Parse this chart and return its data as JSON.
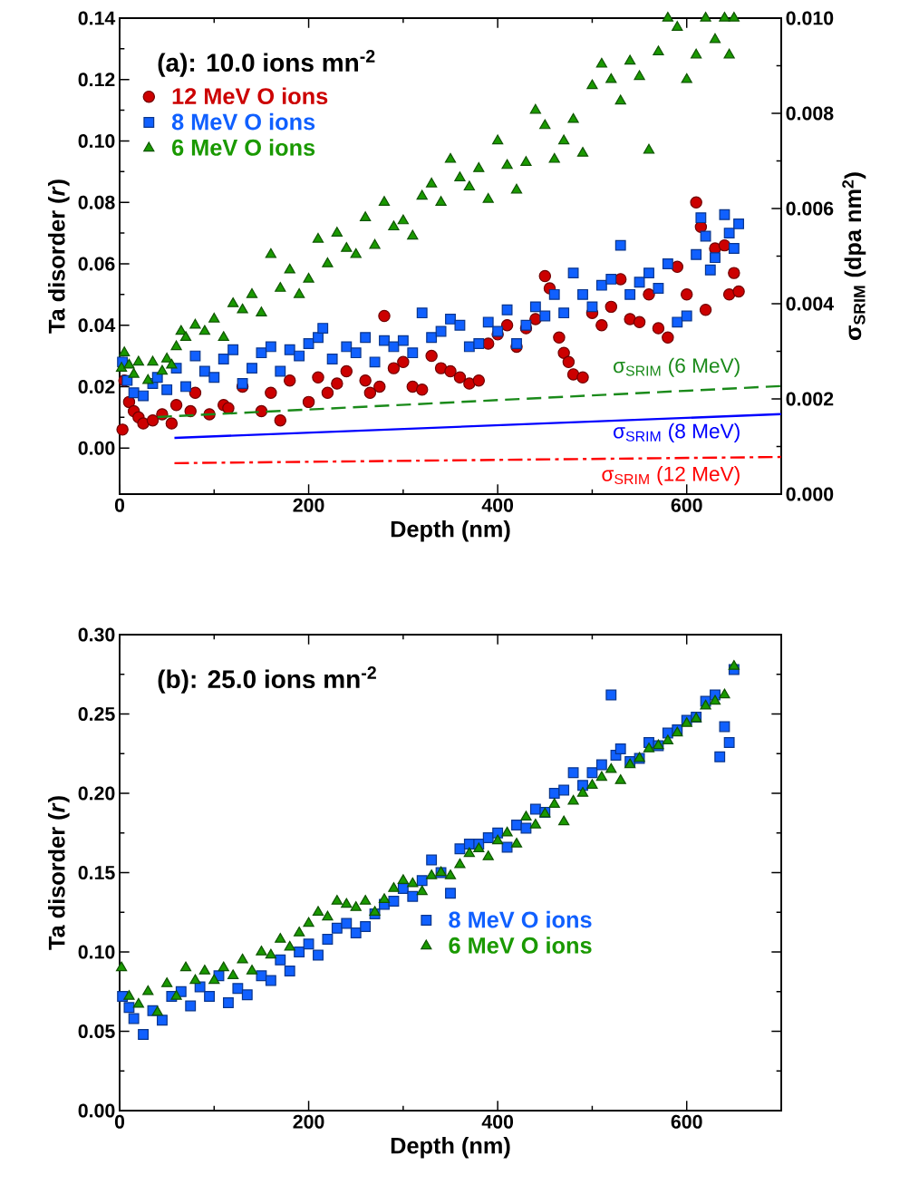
{
  "chart_data": [
    {
      "type": "scatter",
      "annotations": [
        "(a): 10.0 ions mn$^{-2}$"
      ],
      "xlabel": "Depth (nm)",
      "ylabel": "Ta disorder (*r*)",
      "y2label": "σ$_{SRIM}$ (dpa nm$^{2}$)",
      "xlim": [
        0,
        700
      ],
      "xticks": [
        0,
        200,
        400,
        600
      ],
      "ylim": [
        -0.015,
        0.14
      ],
      "yticks": [
        {
          "value": 0,
          "label": "0.00"
        },
        {
          "value": 0.02,
          "label": "0.02"
        },
        {
          "value": 0.04,
          "label": "0.04"
        },
        {
          "value": 0.06,
          "label": "0.06"
        },
        {
          "value": 0.08,
          "label": "0.08"
        },
        {
          "value": 0.1,
          "label": "0.10"
        },
        {
          "value": 0.12,
          "label": "0.12"
        },
        {
          "value": 0.14,
          "label": "0.14"
        }
      ],
      "y2lim": [
        0,
        0.01
      ],
      "y2ticks": [
        {
          "value": 0,
          "label": "0.000"
        },
        {
          "value": 0.002,
          "label": "0.002"
        },
        {
          "value": 0.004,
          "label": "0.004"
        },
        {
          "value": 0.006,
          "label": "0.006"
        },
        {
          "value": 0.008,
          "label": "0.008"
        },
        {
          "value": 0.01,
          "label": "0.010"
        }
      ],
      "legend": "top left",
      "series": [
        {
          "name": "12 MeV O ions",
          "color": "#cc0000",
          "marker": "circle",
          "x": [
            3,
            5,
            10,
            15,
            20,
            25,
            35,
            45,
            55,
            60,
            75,
            80,
            95,
            110,
            115,
            130,
            150,
            160,
            170,
            180,
            200,
            210,
            220,
            230,
            240,
            260,
            265,
            275,
            280,
            290,
            300,
            310,
            320,
            330,
            340,
            350,
            360,
            370,
            380,
            390,
            400,
            410,
            420,
            430,
            440,
            450,
            455,
            465,
            470,
            475,
            480,
            490,
            500,
            510,
            520,
            530,
            540,
            550,
            560,
            570,
            580,
            590,
            600,
            610,
            615,
            620,
            630,
            640,
            645,
            650,
            655
          ],
          "values": [
            0.006,
            0.022,
            0.015,
            0.012,
            0.01,
            0.008,
            0.009,
            0.011,
            0.008,
            0.014,
            0.012,
            0.018,
            0.011,
            0.014,
            0.013,
            0.02,
            0.012,
            0.018,
            0.009,
            0.022,
            0.015,
            0.023,
            0.018,
            0.021,
            0.025,
            0.022,
            0.018,
            0.02,
            0.043,
            0.026,
            0.028,
            0.02,
            0.019,
            0.03,
            0.026,
            0.025,
            0.023,
            0.021,
            0.022,
            0.034,
            0.037,
            0.04,
            0.033,
            0.039,
            0.042,
            0.056,
            0.052,
            0.036,
            0.031,
            0.028,
            0.024,
            0.023,
            0.044,
            0.04,
            0.046,
            0.055,
            0.042,
            0.041,
            0.05,
            0.039,
            0.036,
            0.059,
            0.05,
            0.08,
            0.072,
            0.045,
            0.065,
            0.066,
            0.05,
            0.057,
            0.051
          ]
        },
        {
          "name": "8 MeV O ions",
          "color": "#1060ff",
          "marker": "square",
          "x": [
            3,
            8,
            15,
            25,
            35,
            40,
            50,
            60,
            70,
            80,
            90,
            100,
            110,
            120,
            130,
            140,
            150,
            160,
            170,
            180,
            190,
            200,
            210,
            215,
            225,
            240,
            250,
            260,
            270,
            280,
            290,
            300,
            310,
            320,
            330,
            340,
            350,
            360,
            370,
            380,
            390,
            400,
            410,
            420,
            430,
            440,
            450,
            460,
            470,
            480,
            490,
            500,
            510,
            520,
            530,
            540,
            550,
            560,
            570,
            580,
            590,
            600,
            610,
            615,
            620,
            625,
            630,
            640,
            645,
            650,
            655
          ],
          "values": [
            0.028,
            0.022,
            0.018,
            0.017,
            0.021,
            0.023,
            0.019,
            0.026,
            0.02,
            0.03,
            0.025,
            0.023,
            0.029,
            0.032,
            0.021,
            0.026,
            0.031,
            0.033,
            0.025,
            0.032,
            0.03,
            0.034,
            0.036,
            0.039,
            0.029,
            0.033,
            0.031,
            0.036,
            0.028,
            0.035,
            0.033,
            0.035,
            0.031,
            0.044,
            0.036,
            0.038,
            0.042,
            0.04,
            0.033,
            0.034,
            0.041,
            0.038,
            0.045,
            0.034,
            0.04,
            0.046,
            0.043,
            0.05,
            0.044,
            0.057,
            0.05,
            0.046,
            0.053,
            0.055,
            0.066,
            0.05,
            0.054,
            0.057,
            0.052,
            0.06,
            0.041,
            0.043,
            0.063,
            0.075,
            0.069,
            0.058,
            0.062,
            0.076,
            0.07,
            0.065,
            0.073
          ]
        },
        {
          "name": "6 MeV O ions",
          "color": "#1a9900",
          "marker": "triangle",
          "x": [
            2,
            5,
            10,
            15,
            20,
            30,
            35,
            45,
            50,
            55,
            60,
            65,
            70,
            80,
            90,
            100,
            110,
            120,
            130,
            140,
            150,
            160,
            170,
            180,
            190,
            200,
            210,
            220,
            230,
            240,
            250,
            260,
            270,
            280,
            290,
            300,
            310,
            320,
            330,
            340,
            350,
            360,
            370,
            380,
            390,
            400,
            410,
            420,
            430,
            440,
            450,
            460,
            470,
            480,
            490,
            500,
            510,
            520,
            530,
            540,
            550,
            560,
            570,
            580,
            590,
            600,
            610,
            620,
            630,
            640,
            645,
            650
          ],
          "values": [
            0.026,
            0.031,
            0.027,
            0.024,
            0.028,
            0.022,
            0.028,
            0.025,
            0.029,
            0.027,
            0.033,
            0.038,
            0.036,
            0.04,
            0.038,
            0.042,
            0.036,
            0.047,
            0.045,
            0.05,
            0.044,
            0.063,
            0.052,
            0.058,
            0.05,
            0.055,
            0.068,
            0.06,
            0.07,
            0.065,
            0.063,
            0.075,
            0.066,
            0.08,
            0.072,
            0.074,
            0.069,
            0.082,
            0.086,
            0.08,
            0.094,
            0.088,
            0.085,
            0.091,
            0.081,
            0.1,
            0.092,
            0.084,
            0.093,
            0.11,
            0.105,
            0.094,
            0.1,
            0.107,
            0.096,
            0.118,
            0.125,
            0.12,
            0.113,
            0.126,
            0.121,
            0.097,
            0.129,
            0.14,
            0.137,
            0.12,
            0.128,
            0.14,
            0.133,
            0.14,
            0.128,
            0.14
          ]
        },
        {
          "name": "σ$_{SRIM}$ (6 MeV)",
          "color": "#1a8a1a",
          "type": "line",
          "axis": "y2",
          "line_style": "dashed",
          "x": [
            40,
            700
          ],
          "values": [
            0.00162,
            0.00227
          ]
        },
        {
          "name": "σ$_{SRIM}$ (8 MeV)",
          "color": "#0000ff",
          "type": "line",
          "axis": "y2",
          "line_style": "solid",
          "x": [
            58,
            700
          ],
          "values": [
            0.00118,
            0.00168
          ]
        },
        {
          "name": "σ$_{SRIM}$ (12 MeV)",
          "color": "#ff0000",
          "type": "line",
          "axis": "y2",
          "line_style": "dashdot",
          "x": [
            58,
            700
          ],
          "values": [
            0.00065,
            0.00078
          ]
        }
      ]
    },
    {
      "type": "scatter",
      "annotations": [
        "(b): 25.0 ions mn$^{-2}$"
      ],
      "xlabel": "Depth (nm)",
      "ylabel": "Ta disorder (*r*)",
      "xlim": [
        0,
        700
      ],
      "xticks": [
        0,
        200,
        400,
        600
      ],
      "ylim": [
        0,
        0.3
      ],
      "yticks": [
        {
          "value": 0,
          "label": "0.00"
        },
        {
          "value": 0.05,
          "label": "0.05"
        },
        {
          "value": 0.1,
          "label": "0.10"
        },
        {
          "value": 0.15,
          "label": "0.15"
        },
        {
          "value": 0.2,
          "label": "0.20"
        },
        {
          "value": 0.25,
          "label": "0.25"
        },
        {
          "value": 0.3,
          "label": "0.30"
        }
      ],
      "legend": "right",
      "series": [
        {
          "name": "8 MeV O ions",
          "color": "#1060ff",
          "marker": "square",
          "x": [
            3,
            10,
            15,
            25,
            35,
            45,
            55,
            65,
            75,
            85,
            95,
            105,
            115,
            125,
            135,
            150,
            160,
            170,
            180,
            190,
            200,
            210,
            220,
            230,
            240,
            250,
            260,
            270,
            280,
            290,
            300,
            310,
            320,
            330,
            340,
            350,
            360,
            370,
            380,
            390,
            400,
            410,
            420,
            430,
            440,
            450,
            460,
            470,
            480,
            490,
            500,
            510,
            520,
            525,
            530,
            540,
            550,
            560,
            570,
            580,
            590,
            600,
            610,
            620,
            630,
            635,
            640,
            645,
            650
          ],
          "values": [
            0.072,
            0.065,
            0.058,
            0.048,
            0.063,
            0.057,
            0.072,
            0.075,
            0.066,
            0.078,
            0.072,
            0.085,
            0.068,
            0.077,
            0.073,
            0.085,
            0.082,
            0.095,
            0.088,
            0.1,
            0.105,
            0.098,
            0.108,
            0.115,
            0.118,
            0.112,
            0.116,
            0.124,
            0.13,
            0.132,
            0.14,
            0.135,
            0.145,
            0.158,
            0.15,
            0.137,
            0.165,
            0.168,
            0.168,
            0.172,
            0.175,
            0.166,
            0.18,
            0.178,
            0.19,
            0.188,
            0.2,
            0.202,
            0.213,
            0.205,
            0.213,
            0.218,
            0.262,
            0.224,
            0.228,
            0.22,
            0.222,
            0.232,
            0.23,
            0.238,
            0.24,
            0.246,
            0.248,
            0.258,
            0.262,
            0.223,
            0.242,
            0.232,
            0.278
          ]
        },
        {
          "name": "6 MeV O ions",
          "color": "#1a9900",
          "marker": "triangle",
          "x": [
            2,
            10,
            20,
            30,
            40,
            50,
            60,
            70,
            80,
            90,
            100,
            110,
            120,
            130,
            140,
            150,
            160,
            170,
            180,
            190,
            200,
            210,
            220,
            230,
            240,
            250,
            260,
            270,
            280,
            290,
            300,
            310,
            320,
            330,
            340,
            350,
            360,
            370,
            380,
            390,
            400,
            410,
            420,
            430,
            440,
            450,
            460,
            470,
            480,
            490,
            500,
            510,
            520,
            530,
            540,
            550,
            560,
            570,
            580,
            590,
            600,
            610,
            620,
            630,
            640,
            650
          ],
          "values": [
            0.09,
            0.072,
            0.067,
            0.075,
            0.062,
            0.08,
            0.072,
            0.09,
            0.082,
            0.088,
            0.082,
            0.09,
            0.085,
            0.095,
            0.088,
            0.1,
            0.098,
            0.108,
            0.103,
            0.112,
            0.118,
            0.125,
            0.122,
            0.132,
            0.13,
            0.128,
            0.132,
            0.125,
            0.133,
            0.14,
            0.145,
            0.143,
            0.138,
            0.148,
            0.15,
            0.148,
            0.155,
            0.162,
            0.165,
            0.16,
            0.17,
            0.175,
            0.168,
            0.185,
            0.18,
            0.187,
            0.193,
            0.182,
            0.195,
            0.2,
            0.205,
            0.21,
            0.215,
            0.208,
            0.218,
            0.222,
            0.228,
            0.23,
            0.233,
            0.238,
            0.244,
            0.247,
            0.255,
            0.258,
            0.262,
            0.28
          ]
        }
      ]
    }
  ]
}
